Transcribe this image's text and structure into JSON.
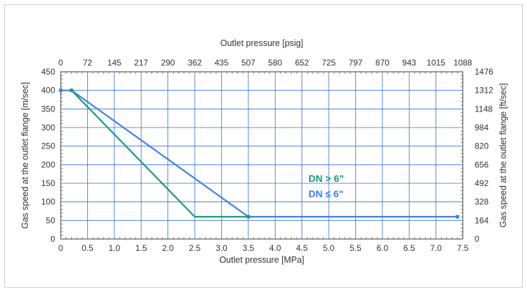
{
  "chart_data": {
    "type": "line",
    "x_bottom_label": "Outlet pressure [MPa]",
    "x_top_label": "Outlet pressure [psig]",
    "y_left_label": "Gas speed at the outlet flange [m/sec]",
    "y_right_label": "Gas speed at the outlet flange [ft/sec]",
    "x_range": [
      0,
      7.5
    ],
    "y_range": [
      0,
      450
    ],
    "x_bottom_ticks": [
      "0",
      "0.5",
      "1.0",
      "1.5",
      "2.0",
      "2.5",
      "3.0",
      "3.5",
      "4.0",
      "4.5",
      "5.0",
      "5.5",
      "6.0",
      "6.5",
      "7.0",
      "7.5"
    ],
    "x_top_ticks": [
      "0",
      "72",
      "145",
      "217",
      "290",
      "362",
      "435",
      "507",
      "580",
      "652",
      "725",
      "797",
      "870",
      "943",
      "1015",
      "1088"
    ],
    "y_left_ticks": [
      "0",
      "50",
      "100",
      "150",
      "200",
      "250",
      "300",
      "350",
      "400",
      "450"
    ],
    "y_right_ticks": [
      "0",
      "164",
      "328",
      "492",
      "656",
      "820",
      "984",
      "1148",
      "1312",
      "1476"
    ],
    "grid": true,
    "series": [
      {
        "name": "DN > 6\"",
        "color": "#1a9a78",
        "x": [
          0.2,
          2.5,
          3.5
        ],
        "y": [
          400,
          60,
          60
        ]
      },
      {
        "name": "DN ≤ 6\"",
        "color": "#3f7fe6",
        "x": [
          0,
          0.2,
          3.5,
          7.4
        ],
        "y": [
          400,
          400,
          60,
          60
        ]
      }
    ]
  }
}
